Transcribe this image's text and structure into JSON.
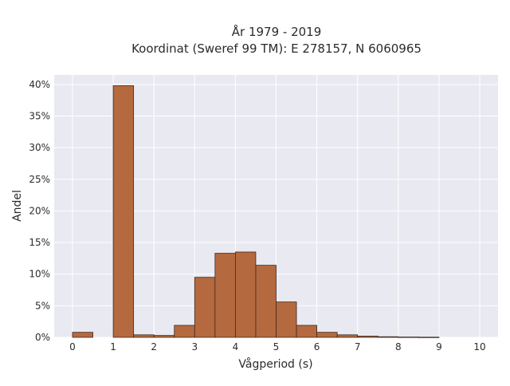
{
  "chart_data": {
    "type": "bar",
    "title_lines": [
      "År 1979 - 2019",
      "Koordinat (Sweref 99 TM): E 278157, N 6060965"
    ],
    "xlabel": "Vågperiod (s)",
    "ylabel": "Andel",
    "xlim": [
      -0.45,
      10.45
    ],
    "ylim": [
      0,
      41.5
    ],
    "x_ticks": [
      0,
      1,
      2,
      3,
      4,
      5,
      6,
      7,
      8,
      9,
      10
    ],
    "x_tick_labels": [
      "0",
      "1",
      "2",
      "3",
      "4",
      "5",
      "6",
      "7",
      "8",
      "9",
      "10"
    ],
    "y_ticks": [
      0,
      5,
      10,
      15,
      20,
      25,
      30,
      35,
      40
    ],
    "y_tick_labels": [
      "0%",
      "5%",
      "10%",
      "15%",
      "20%",
      "25%",
      "30%",
      "35%",
      "40%"
    ],
    "bin_width": 0.5,
    "bins": [
      {
        "start": 0.0,
        "value": 0.8
      },
      {
        "start": 0.5,
        "value": 0.0
      },
      {
        "start": 1.0,
        "value": 39.8
      },
      {
        "start": 1.5,
        "value": 0.4
      },
      {
        "start": 2.0,
        "value": 0.3
      },
      {
        "start": 2.5,
        "value": 1.9
      },
      {
        "start": 3.0,
        "value": 9.5
      },
      {
        "start": 3.5,
        "value": 13.3
      },
      {
        "start": 4.0,
        "value": 13.5
      },
      {
        "start": 4.5,
        "value": 11.4
      },
      {
        "start": 5.0,
        "value": 5.6
      },
      {
        "start": 5.5,
        "value": 1.9
      },
      {
        "start": 6.0,
        "value": 0.8
      },
      {
        "start": 6.5,
        "value": 0.4
      },
      {
        "start": 7.0,
        "value": 0.2
      },
      {
        "start": 7.5,
        "value": 0.1
      },
      {
        "start": 8.0,
        "value": 0.05
      },
      {
        "start": 8.5,
        "value": 0.03
      },
      {
        "start": 9.0,
        "value": 0.0
      },
      {
        "start": 9.5,
        "value": 0.0
      }
    ],
    "grid": true,
    "colors": {
      "bar_fill": "#b5693f",
      "bar_stroke": "#3d2a1e",
      "plot_background": "#e9e9f1",
      "grid": "#ffffff"
    }
  }
}
